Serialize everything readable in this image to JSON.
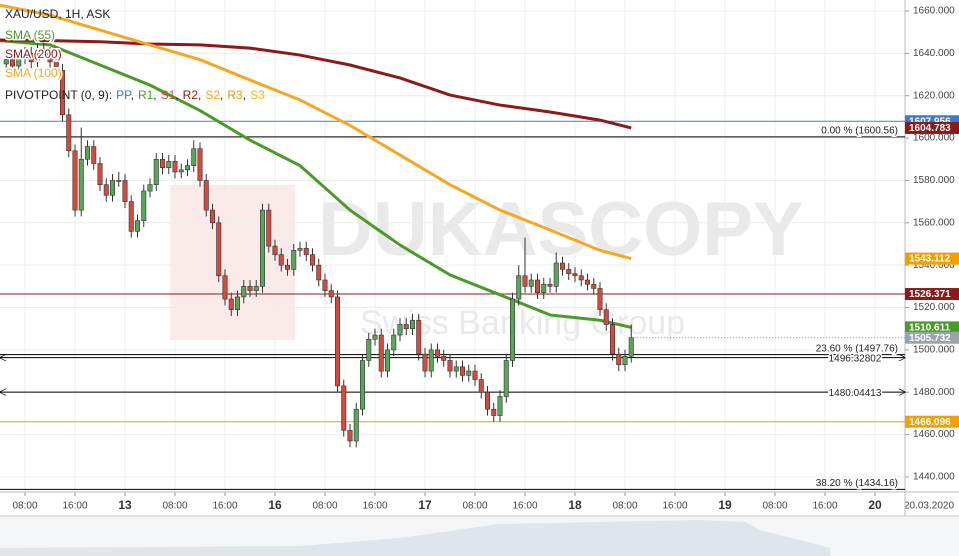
{
  "chart_data": {
    "type": "candlestick",
    "title": "XAU/USD, 1H, ASK",
    "watermark": [
      "DUKASCOPY",
      "Swiss Banking Group"
    ],
    "date_label": "20.03.2020",
    "up_color": "#5aa55a",
    "down_color": "#d24b3e",
    "grid": true,
    "xlim": [
      -20,
      124.8
    ],
    "ylim": [
      1432.9,
      1665.2
    ],
    "xticks": [
      {
        "value": -16,
        "label": "08:00"
      },
      {
        "value": -8,
        "label": "16:00"
      },
      {
        "value": 0,
        "label": "13"
      },
      {
        "value": 8,
        "label": "08:00"
      },
      {
        "value": 16,
        "label": "16:00"
      },
      {
        "value": 24,
        "label": "16"
      },
      {
        "value": 32,
        "label": "08:00"
      },
      {
        "value": 40,
        "label": "16:00"
      },
      {
        "value": 48,
        "label": "17"
      },
      {
        "value": 56,
        "label": "08:00"
      },
      {
        "value": 64,
        "label": "16:00"
      },
      {
        "value": 72,
        "label": "18"
      },
      {
        "value": 80,
        "label": "08:00"
      },
      {
        "value": 88,
        "label": "16:00"
      },
      {
        "value": 96,
        "label": "19"
      },
      {
        "value": 104,
        "label": "08:00"
      },
      {
        "value": 112,
        "label": "16:00"
      },
      {
        "value": 120,
        "label": "20"
      }
    ],
    "yticks": [
      {
        "value": 1440,
        "label": "1440.000"
      },
      {
        "value": 1460,
        "label": "1460.000"
      },
      {
        "value": 1480,
        "label": "1480.000"
      },
      {
        "value": 1500,
        "label": "1500.000"
      },
      {
        "value": 1520,
        "label": "1520.000"
      },
      {
        "value": 1540,
        "label": "1540.000"
      },
      {
        "value": 1560,
        "label": "1560.000"
      },
      {
        "value": 1580,
        "label": "1580.000"
      },
      {
        "value": 1600,
        "label": "1600.000"
      },
      {
        "value": 1620,
        "label": "1620.000"
      },
      {
        "value": 1640,
        "label": "1640.000"
      },
      {
        "value": 1660,
        "label": "1660.000"
      }
    ],
    "x": [
      -19,
      -18,
      -17,
      -16,
      -15,
      -14,
      -13,
      -12,
      -11,
      -10,
      -9,
      -8,
      -7,
      -6,
      -5,
      -4,
      -3,
      -2,
      -1,
      0,
      1,
      2,
      3,
      4,
      5,
      6,
      7,
      8,
      9,
      10,
      11,
      12,
      13,
      14,
      15,
      16,
      17,
      18,
      19,
      20,
      21,
      22,
      23,
      24,
      25,
      26,
      27,
      28,
      29,
      30,
      31,
      32,
      33,
      34,
      35,
      36,
      37,
      38,
      39,
      40,
      41,
      42,
      43,
      44,
      45,
      46,
      47,
      48,
      49,
      50,
      51,
      52,
      53,
      54,
      55,
      56,
      57,
      58,
      59,
      60,
      61,
      62,
      63,
      64,
      65,
      66,
      67,
      68,
      69,
      70,
      71,
      72,
      73,
      74,
      75,
      76,
      77,
      78,
      79,
      80,
      81
    ],
    "open": [
      1635,
      1637,
      1634,
      1638,
      1640,
      1636,
      1642,
      1640,
      1636,
      1632,
      1611,
      1594,
      1566,
      1590,
      1596,
      1588,
      1578,
      1573,
      1580,
      1580,
      1570,
      1556,
      1561,
      1575,
      1578,
      1590,
      1586,
      1589,
      1584,
      1585,
      1587,
      1595,
      1580,
      1566,
      1560,
      1535,
      1524,
      1519,
      1525,
      1530,
      1528,
      1530,
      1566,
      1549,
      1545,
      1540,
      1538,
      1547,
      1548,
      1545,
      1540,
      1533,
      1528,
      1525,
      1483,
      1462,
      1457,
      1472,
      1495,
      1505,
      1507,
      1490,
      1500,
      1507,
      1512,
      1510,
      1514,
      1498,
      1490,
      1500,
      1497,
      1495,
      1490,
      1492,
      1488,
      1490,
      1486,
      1480,
      1472,
      1469,
      1478,
      1495,
      1524,
      1535,
      1530,
      1533,
      1527,
      1531,
      1530,
      1541,
      1538,
      1536,
      1535,
      1533,
      1531,
      1529,
      1519,
      1512,
      1498,
      1493,
      1497
    ],
    "high": [
      1640,
      1640,
      1641,
      1643,
      1643,
      1645,
      1645,
      1643,
      1639,
      1635,
      1614,
      1597,
      1605,
      1599,
      1599,
      1591,
      1581,
      1583,
      1584,
      1583,
      1573,
      1564,
      1578,
      1581,
      1593,
      1593,
      1592,
      1592,
      1588,
      1590,
      1599,
      1598,
      1583,
      1569,
      1563,
      1538,
      1527,
      1528,
      1533,
      1533,
      1533,
      1569,
      1569,
      1552,
      1548,
      1543,
      1550,
      1551,
      1551,
      1548,
      1543,
      1536,
      1531,
      1528,
      1486,
      1465,
      1475,
      1498,
      1508,
      1510,
      1510,
      1503,
      1510,
      1515,
      1515,
      1517,
      1517,
      1501,
      1503,
      1503,
      1500,
      1498,
      1495,
      1495,
      1493,
      1493,
      1489,
      1483,
      1475,
      1481,
      1498,
      1527,
      1540,
      1553,
      1536,
      1536,
      1534,
      1534,
      1546,
      1544,
      1541,
      1539,
      1538,
      1536,
      1534,
      1532,
      1522,
      1515,
      1501,
      1500,
      1512
    ],
    "low": [
      1632,
      1631,
      1631,
      1635,
      1633,
      1633,
      1637,
      1633,
      1629,
      1608,
      1591,
      1563,
      1563,
      1587,
      1585,
      1575,
      1570,
      1570,
      1577,
      1567,
      1553,
      1553,
      1558,
      1572,
      1575,
      1583,
      1583,
      1581,
      1581,
      1582,
      1584,
      1577,
      1563,
      1557,
      1532,
      1521,
      1516,
      1516,
      1522,
      1525,
      1525,
      1527,
      1546,
      1542,
      1537,
      1535,
      1535,
      1544,
      1542,
      1537,
      1530,
      1525,
      1522,
      1480,
      1459,
      1454,
      1454,
      1469,
      1492,
      1502,
      1487,
      1487,
      1497,
      1504,
      1507,
      1507,
      1495,
      1487,
      1487,
      1494,
      1492,
      1487,
      1487,
      1485,
      1485,
      1483,
      1477,
      1469,
      1466,
      1466,
      1475,
      1492,
      1521,
      1527,
      1527,
      1524,
      1524,
      1527,
      1527,
      1535,
      1533,
      1532,
      1530,
      1528,
      1526,
      1516,
      1509,
      1495,
      1490,
      1490,
      1494
    ],
    "close": [
      1637,
      1634,
      1638,
      1640,
      1636,
      1642,
      1640,
      1636,
      1632,
      1611,
      1594,
      1566,
      1590,
      1596,
      1588,
      1578,
      1573,
      1580,
      1580,
      1570,
      1556,
      1561,
      1575,
      1578,
      1590,
      1586,
      1589,
      1584,
      1585,
      1587,
      1595,
      1580,
      1566,
      1560,
      1535,
      1524,
      1519,
      1525,
      1530,
      1528,
      1530,
      1566,
      1549,
      1545,
      1540,
      1538,
      1547,
      1548,
      1545,
      1540,
      1533,
      1528,
      1525,
      1483,
      1462,
      1457,
      1472,
      1495,
      1505,
      1507,
      1490,
      1500,
      1507,
      1512,
      1510,
      1514,
      1498,
      1490,
      1500,
      1497,
      1495,
      1490,
      1492,
      1488,
      1490,
      1486,
      1480,
      1472,
      1469,
      1478,
      1495,
      1524,
      1535,
      1530,
      1533,
      1527,
      1531,
      1530,
      1541,
      1538,
      1536,
      1535,
      1533,
      1531,
      1529,
      1519,
      1512,
      1498,
      1493,
      1497,
      1505.732
    ],
    "series": [
      {
        "name": "SMA (55)",
        "color": "#4a9a2a",
        "x": [
          -20,
          -12,
          -4,
          4,
          12,
          20,
          28,
          36,
          44,
          52,
          60,
          68,
          76,
          81
        ],
        "values": [
          1646,
          1644,
          1634.5,
          1625,
          1613,
          1599,
          1587,
          1566,
          1549.5,
          1535.4,
          1526,
          1516.5,
          1514,
          1510.611
        ]
      },
      {
        "name": "SMA (200)",
        "color": "#8b1a1a",
        "x": [
          -20,
          -12,
          -4,
          4,
          12,
          20,
          28,
          36,
          44,
          52,
          60,
          68,
          76,
          81
        ],
        "values": [
          1646.3,
          1646,
          1645.5,
          1644.4,
          1644,
          1642.5,
          1639.2,
          1634.5,
          1628.4,
          1620.3,
          1615.6,
          1612.3,
          1608.5,
          1604.783
        ]
      },
      {
        "name": "SMA (100)",
        "color": "#f5a623",
        "x": [
          -20,
          -12,
          -4,
          4,
          12,
          20,
          28,
          36,
          44,
          52,
          60,
          68,
          76,
          81
        ],
        "values": [
          1662.8,
          1658,
          1651,
          1644,
          1637,
          1627.4,
          1618,
          1606,
          1592,
          1578,
          1566,
          1556.6,
          1547,
          1543.112
        ]
      }
    ],
    "pivot": {
      "label": "PIVOTPOINT (0, 9):",
      "separator": ",",
      "items": [
        {
          "text": "PP",
          "color": "#3a7bd5"
        },
        {
          "text": "R1",
          "color": "#4a9a2a"
        },
        {
          "text": "S1",
          "color": "#d24b3e"
        },
        {
          "text": "R2",
          "color": "#8b1a1a"
        },
        {
          "text": "S2",
          "color": "#f5a623"
        },
        {
          "text": "R3",
          "color": "#e0a000"
        },
        {
          "text": "S3",
          "color": "#e8c400"
        }
      ]
    },
    "levels": [
      {
        "value": 1607.956,
        "color": "#4a7fcf"
      },
      {
        "value": 1600.56,
        "color": "#000000",
        "label": "0.00 % (1600.56)"
      },
      {
        "value": 1526.371,
        "color": "#8b1a1a"
      },
      {
        "value": 1497.76,
        "color": "#000000",
        "label": "23.60 % (1497.76)"
      },
      {
        "value": 1496.32802,
        "color": "#000000",
        "label": "1496.32802",
        "arrows": true
      },
      {
        "value": 1480.04413,
        "color": "#000000",
        "label": "1480.04413",
        "arrows": true
      },
      {
        "value": 1466.096,
        "color": "#f0a000"
      },
      {
        "value": 1434.16,
        "color": "#000000",
        "label": "38.20 % (1434.16)"
      }
    ],
    "price_tags": [
      {
        "value": 1607.956,
        "color": "#3a7bd5"
      },
      {
        "value": 1604.783,
        "color": "#8b1a1a"
      },
      {
        "value": 1543.112,
        "color": "#f0a000"
      },
      {
        "value": 1526.371,
        "color": "#8b1a1a"
      },
      {
        "value": 1510.611,
        "color": "#4a9a2a"
      },
      {
        "value": 1505.732,
        "color": "#9aa3ad"
      },
      {
        "value": 1466.096,
        "color": "#f0a000"
      }
    ]
  }
}
